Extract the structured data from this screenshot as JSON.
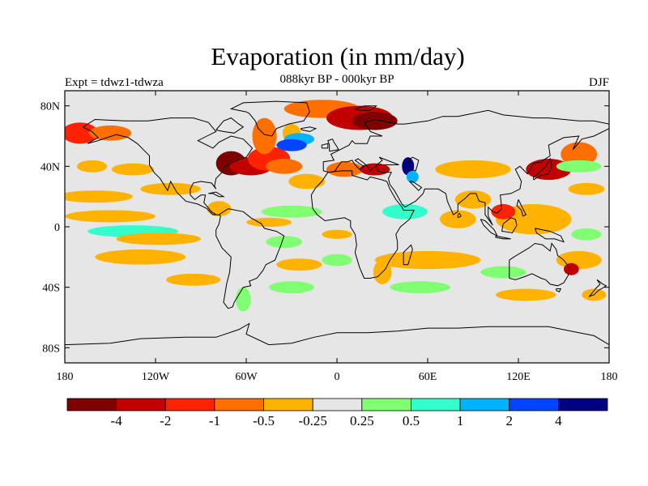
{
  "header": {
    "title": "Evaporation (in mm/day)",
    "subtitle": "088kyr BP - 000kyr BP",
    "left_label": "Expt = tdwz1-tdwza",
    "right_label": "DJF"
  },
  "map": {
    "projection": "cylindrical-equidistant",
    "lon_range": [
      -180,
      180
    ],
    "lat_range": [
      -90,
      90
    ],
    "x_ticks": [
      {
        "lon": -180,
        "label": "180"
      },
      {
        "lon": -120,
        "label": "120W"
      },
      {
        "lon": -60,
        "label": "60W"
      },
      {
        "lon": 0,
        "label": "0"
      },
      {
        "lon": 60,
        "label": "60E"
      },
      {
        "lon": 120,
        "label": "120E"
      },
      {
        "lon": 180,
        "label": "180"
      }
    ],
    "y_ticks": [
      {
        "lat": 80,
        "label": "80N"
      },
      {
        "lat": 40,
        "label": "40N"
      },
      {
        "lat": 0,
        "label": "0"
      },
      {
        "lat": -40,
        "label": "40S"
      },
      {
        "lat": -80,
        "label": "80S"
      }
    ],
    "background_color": "#e6e6e6",
    "anomaly_regions": [
      {
        "lon": -170,
        "lat": 62,
        "rx": 12,
        "ry": 7,
        "level": 2
      },
      {
        "lon": -150,
        "lat": 62,
        "rx": 14,
        "ry": 5,
        "level": 3
      },
      {
        "lon": -162,
        "lat": 40,
        "rx": 10,
        "ry": 4,
        "level": 4
      },
      {
        "lon": -135,
        "lat": 38,
        "rx": 14,
        "ry": 4,
        "level": 4
      },
      {
        "lon": -160,
        "lat": 20,
        "rx": 25,
        "ry": 4,
        "level": 4
      },
      {
        "lon": -110,
        "lat": 25,
        "rx": 20,
        "ry": 4,
        "level": 4
      },
      {
        "lon": -150,
        "lat": 7,
        "rx": 30,
        "ry": 4,
        "level": 4
      },
      {
        "lon": -135,
        "lat": -3,
        "rx": 30,
        "ry": 4,
        "level": 7
      },
      {
        "lon": -118,
        "lat": -8,
        "rx": 28,
        "ry": 4,
        "level": 4
      },
      {
        "lon": -130,
        "lat": -20,
        "rx": 30,
        "ry": 5,
        "level": 4
      },
      {
        "lon": -95,
        "lat": -35,
        "rx": 18,
        "ry": 4,
        "level": 4
      },
      {
        "lon": -78,
        "lat": 12,
        "rx": 8,
        "ry": 5,
        "level": 4
      },
      {
        "lon": -70,
        "lat": 42,
        "rx": 10,
        "ry": 8,
        "level": 0
      },
      {
        "lon": -57,
        "lat": 40,
        "rx": 14,
        "ry": 6,
        "level": 1
      },
      {
        "lon": -45,
        "lat": 45,
        "rx": 14,
        "ry": 8,
        "level": 2
      },
      {
        "lon": -35,
        "lat": 40,
        "rx": 12,
        "ry": 5,
        "level": 3
      },
      {
        "lon": -48,
        "lat": 60,
        "rx": 8,
        "ry": 12,
        "level": 3
      },
      {
        "lon": -30,
        "lat": 62,
        "rx": 6,
        "ry": 6,
        "level": 4
      },
      {
        "lon": -25,
        "lat": 58,
        "rx": 10,
        "ry": 4,
        "level": 8
      },
      {
        "lon": -30,
        "lat": 54,
        "rx": 10,
        "ry": 4,
        "level": 9
      },
      {
        "lon": -20,
        "lat": 30,
        "rx": 12,
        "ry": 5,
        "level": 4
      },
      {
        "lon": -30,
        "lat": 10,
        "rx": 20,
        "ry": 4,
        "level": 6
      },
      {
        "lon": -45,
        "lat": 3,
        "rx": 15,
        "ry": 3,
        "level": 4
      },
      {
        "lon": -35,
        "lat": -10,
        "rx": 12,
        "ry": 4,
        "level": 6
      },
      {
        "lon": -25,
        "lat": -25,
        "rx": 15,
        "ry": 4,
        "level": 4
      },
      {
        "lon": -30,
        "lat": -40,
        "rx": 15,
        "ry": 4,
        "level": 6
      },
      {
        "lon": -62,
        "lat": -48,
        "rx": 5,
        "ry": 8,
        "level": 6
      },
      {
        "lon": -10,
        "lat": 78,
        "rx": 25,
        "ry": 6,
        "level": 3
      },
      {
        "lon": 15,
        "lat": 72,
        "rx": 22,
        "ry": 8,
        "level": 1
      },
      {
        "lon": 25,
        "lat": 70,
        "rx": 15,
        "ry": 6,
        "level": 0
      },
      {
        "lon": 5,
        "lat": 38,
        "rx": 12,
        "ry": 5,
        "level": 3
      },
      {
        "lon": 25,
        "lat": 38,
        "rx": 10,
        "ry": 4,
        "level": 1
      },
      {
        "lon": 47,
        "lat": 40,
        "rx": 4,
        "ry": 6,
        "level": 10
      },
      {
        "lon": 50,
        "lat": 33,
        "rx": 4,
        "ry": 4,
        "level": 8
      },
      {
        "lon": 0,
        "lat": -5,
        "rx": 10,
        "ry": 3,
        "level": 4
      },
      {
        "lon": 0,
        "lat": -22,
        "rx": 10,
        "ry": 4,
        "level": 6
      },
      {
        "lon": 45,
        "lat": 10,
        "rx": 15,
        "ry": 5,
        "level": 7
      },
      {
        "lon": 60,
        "lat": -22,
        "rx": 35,
        "ry": 6,
        "level": 4
      },
      {
        "lon": 30,
        "lat": -30,
        "rx": 6,
        "ry": 8,
        "level": 4
      },
      {
        "lon": 55,
        "lat": -40,
        "rx": 20,
        "ry": 4,
        "level": 6
      },
      {
        "lon": 80,
        "lat": 5,
        "rx": 12,
        "ry": 6,
        "level": 4
      },
      {
        "lon": 90,
        "lat": 18,
        "rx": 12,
        "ry": 6,
        "level": 4
      },
      {
        "lon": 90,
        "lat": 38,
        "rx": 25,
        "ry": 6,
        "level": 4
      },
      {
        "lon": 130,
        "lat": 5,
        "rx": 25,
        "ry": 10,
        "level": 4
      },
      {
        "lon": 110,
        "lat": 10,
        "rx": 8,
        "ry": 5,
        "level": 2
      },
      {
        "lon": 140,
        "lat": 38,
        "rx": 15,
        "ry": 7,
        "level": 1
      },
      {
        "lon": 160,
        "lat": 48,
        "rx": 12,
        "ry": 8,
        "level": 3
      },
      {
        "lon": 160,
        "lat": 40,
        "rx": 15,
        "ry": 4,
        "level": 6
      },
      {
        "lon": 165,
        "lat": 25,
        "rx": 12,
        "ry": 4,
        "level": 4
      },
      {
        "lon": 160,
        "lat": -22,
        "rx": 15,
        "ry": 6,
        "level": 4
      },
      {
        "lon": 155,
        "lat": -28,
        "rx": 5,
        "ry": 4,
        "level": 1
      },
      {
        "lon": 165,
        "lat": -5,
        "rx": 10,
        "ry": 4,
        "level": 6
      },
      {
        "lon": 110,
        "lat": -30,
        "rx": 15,
        "ry": 4,
        "level": 6
      },
      {
        "lon": 125,
        "lat": -45,
        "rx": 20,
        "ry": 4,
        "level": 4
      },
      {
        "lon": 170,
        "lat": -45,
        "rx": 8,
        "ry": 4,
        "level": 4
      }
    ]
  },
  "colorbar": {
    "colors": [
      "#7f0000",
      "#c20000",
      "#ff2200",
      "#ff6f00",
      "#ffb300",
      "#e6e6e6",
      "#80ff73",
      "#33ffcc",
      "#00b3ff",
      "#0044ff",
      "#000080"
    ],
    "labels": [
      "-4",
      "-2",
      "-1",
      "-0.5",
      "-0.25",
      "0.25",
      "0.5",
      "1",
      "2",
      "4"
    ]
  }
}
